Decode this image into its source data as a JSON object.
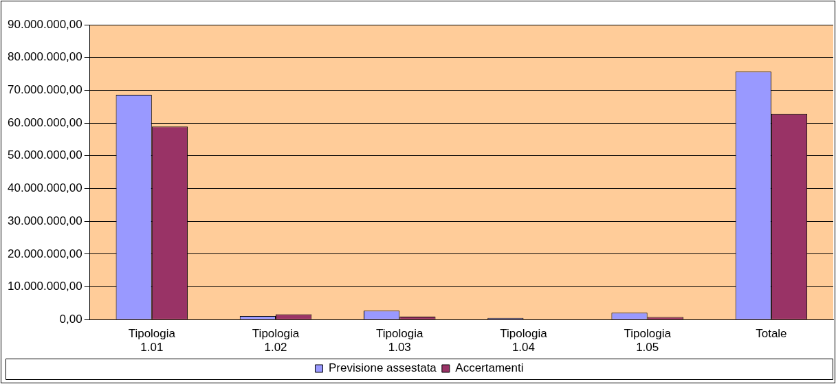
{
  "chart_data": {
    "type": "bar",
    "categories": [
      "Tipologia 1.01",
      "Tipologia 1.02",
      "Tipologia 1.03",
      "Tipologia 1.04",
      "Tipologia 1.05",
      "Totale"
    ],
    "series": [
      {
        "name": "Previsione assestata",
        "color": "#9999ff",
        "values": [
          68600000,
          1100000,
          2700000,
          500000,
          2100000,
          75700000
        ]
      },
      {
        "name": "Accertamenti",
        "color": "#993366",
        "values": [
          58900000,
          1600000,
          900000,
          0,
          800000,
          62800000
        ]
      }
    ],
    "ylim": [
      0,
      90000000
    ],
    "yticks": [
      {
        "value": 0,
        "label": "0,00"
      },
      {
        "value": 10000000,
        "label": "10.000.000,00"
      },
      {
        "value": 20000000,
        "label": "20.000.000,00"
      },
      {
        "value": 30000000,
        "label": "30.000.000,00"
      },
      {
        "value": 40000000,
        "label": "40.000.000,00"
      },
      {
        "value": 50000000,
        "label": "50.000.000,00"
      },
      {
        "value": 60000000,
        "label": "60.000.000,00"
      },
      {
        "value": 70000000,
        "label": "70.000.000,00"
      },
      {
        "value": 80000000,
        "label": "80.000.000,00"
      },
      {
        "value": 90000000,
        "label": "90.000.000,00"
      }
    ],
    "grid": "y",
    "legend": "bottom"
  }
}
